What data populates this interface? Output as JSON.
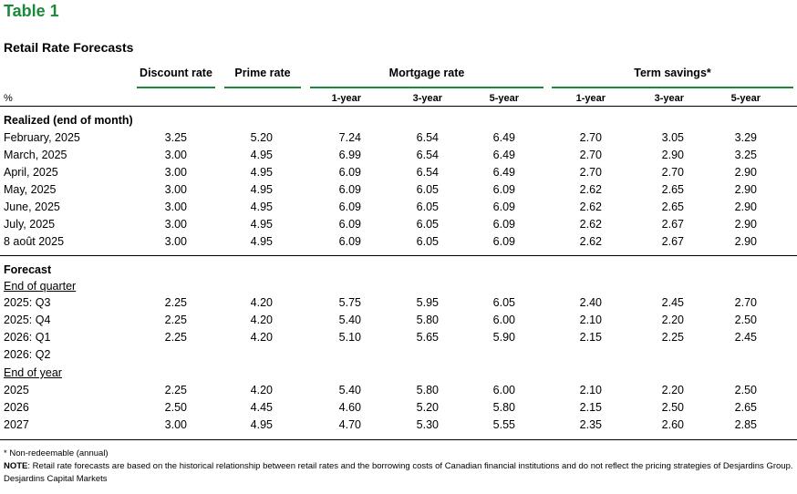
{
  "title": "Table 1",
  "subtitle": "Retail Rate Forecasts",
  "columns": {
    "discount": "Discount rate",
    "prime": "Prime rate",
    "mortgage": "Mortgage rate",
    "term": "Term savings*"
  },
  "units_label": "%",
  "subheads": [
    "1-year",
    "3-year",
    "5-year",
    "1-year",
    "3-year",
    "5-year"
  ],
  "realized": {
    "title": "Realized (end of month)",
    "rows": [
      {
        "label": "February, 2025",
        "values": [
          "3.25",
          "5.20",
          "7.24",
          "6.54",
          "6.49",
          "2.70",
          "3.05",
          "3.29"
        ]
      },
      {
        "label": "March, 2025",
        "values": [
          "3.00",
          "4.95",
          "6.99",
          "6.54",
          "6.49",
          "2.70",
          "2.90",
          "3.25"
        ]
      },
      {
        "label": "April, 2025",
        "values": [
          "3.00",
          "4.95",
          "6.09",
          "6.54",
          "6.49",
          "2.70",
          "2.70",
          "2.90"
        ]
      },
      {
        "label": "May, 2025",
        "values": [
          "3.00",
          "4.95",
          "6.09",
          "6.05",
          "6.09",
          "2.62",
          "2.65",
          "2.90"
        ]
      },
      {
        "label": "June, 2025",
        "values": [
          "3.00",
          "4.95",
          "6.09",
          "6.05",
          "6.09",
          "2.62",
          "2.65",
          "2.90"
        ]
      },
      {
        "label": "July, 2025",
        "values": [
          "3.00",
          "4.95",
          "6.09",
          "6.05",
          "6.09",
          "2.62",
          "2.67",
          "2.90"
        ]
      },
      {
        "label": "8 août 2025",
        "values": [
          "3.00",
          "4.95",
          "6.09",
          "6.05",
          "6.09",
          "2.62",
          "2.67",
          "2.90"
        ]
      }
    ]
  },
  "forecast": {
    "title": "Forecast",
    "quarter_label": "End of quarter",
    "quarter_rows": [
      {
        "label": "2025: Q3",
        "values": [
          "2.25",
          "4.20",
          "5.75",
          "5.95",
          "6.05",
          "2.40",
          "2.45",
          "2.70"
        ]
      },
      {
        "label": "2025: Q4",
        "values": [
          "2.25",
          "4.20",
          "5.40",
          "5.80",
          "6.00",
          "2.10",
          "2.20",
          "2.50"
        ]
      },
      {
        "label": "2026: Q1",
        "values": [
          "2.25",
          "4.20",
          "5.10",
          "5.65",
          "5.90",
          "2.15",
          "2.25",
          "2.45"
        ]
      },
      {
        "label": "2026: Q2",
        "values": [
          "",
          "",
          "",
          "",
          "",
          "",
          "",
          ""
        ]
      }
    ],
    "year_label": "End of year",
    "year_rows": [
      {
        "label": "2025",
        "values": [
          "2.25",
          "4.20",
          "5.40",
          "5.80",
          "6.00",
          "2.10",
          "2.20",
          "2.50"
        ]
      },
      {
        "label": "2026",
        "values": [
          "2.50",
          "4.45",
          "4.60",
          "5.20",
          "5.80",
          "2.15",
          "2.50",
          "2.65"
        ]
      },
      {
        "label": "2027",
        "values": [
          "3.00",
          "4.95",
          "4.70",
          "5.30",
          "5.55",
          "2.35",
          "2.60",
          "2.85"
        ]
      }
    ]
  },
  "footnotes": {
    "star": "* Non-redeemable (annual)",
    "note_label": "NOTE",
    "note_text": ": Retail rate forecasts are based on the historical relationship between retail rates and the borrowing costs of Canadian financial institutions and do not reflect the pricing strategies of Desjardins Group.",
    "source": "Desjardins Capital Markets"
  },
  "colors": {
    "title": "#1a8a3a",
    "rule": "#1a8a3a"
  }
}
